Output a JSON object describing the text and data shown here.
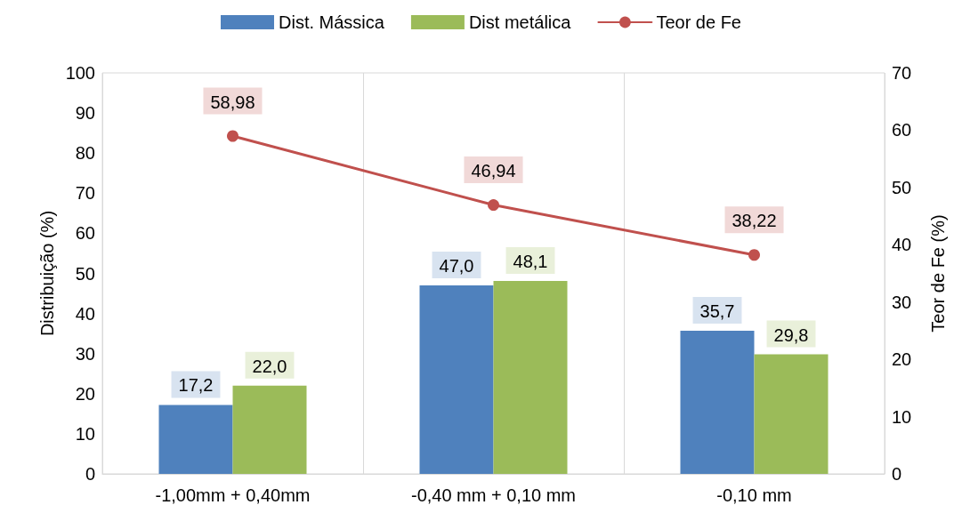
{
  "chart_data": {
    "type": "bar",
    "ylabel": "Distribuição (%)",
    "y2label": "Teor de Fe (%)",
    "categories": [
      "-1,00mm + 0,40mm",
      "-0,40 mm + 0,10 mm",
      "-0,10 mm"
    ],
    "series": [
      {
        "name": "Dist. Mássica",
        "color": "#4f81bd",
        "values": [
          17.2,
          47.0,
          35.7
        ],
        "value_labels": [
          "17,2",
          "47,0",
          "35,7"
        ]
      },
      {
        "name": "Dist metálica",
        "color": "#9bbb59",
        "values": [
          22.0,
          48.1,
          29.8
        ],
        "value_labels": [
          "22,0",
          "48,1",
          "29,8"
        ]
      },
      {
        "name": "Teor de Fe",
        "type": "line",
        "axis": "y2",
        "color": "#c0504d",
        "marker": "circle",
        "values": [
          58.98,
          46.94,
          38.22
        ],
        "value_labels": [
          "58,98",
          "46,94",
          "38,22"
        ]
      }
    ],
    "ylim": [
      0,
      100
    ],
    "yticks": [
      0,
      10,
      20,
      30,
      40,
      50,
      60,
      70,
      80,
      90,
      100
    ],
    "y2lim": [
      0,
      70
    ],
    "y2ticks": [
      0,
      10,
      20,
      30,
      40,
      50,
      60,
      70
    ],
    "grid": "x",
    "legend": "top"
  }
}
